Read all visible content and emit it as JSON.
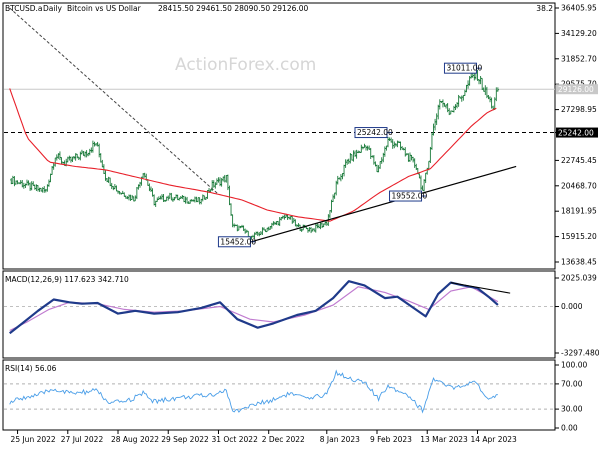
{
  "header": {
    "symbol": "BTCUSD.a",
    "timeframe": "Daily",
    "description": "Bitcoin vs US Dollar",
    "ohlc": "28415.50 29461.50 28090.50 29126.00",
    "corner_value": "38.2"
  },
  "watermark": "ActionForex.com",
  "colors": {
    "price_bars": "#1a7a3a",
    "moving_average": "#e8202a",
    "trendline": "#000000",
    "macd_line": "#1f3a8a",
    "signal_line": "#c07bd0",
    "rsi_line": "#4a9ee8"
  },
  "chart_data": [
    {
      "type": "ohlc",
      "panel": "price",
      "ylim": [
        13638.45,
        36405.95
      ],
      "y_ticks": [
        "36405.95",
        "34129.20",
        "31852.70",
        "29575.70",
        "27298.95",
        "25242.00",
        "22745.45",
        "20468.70",
        "18191.95",
        "15915.20",
        "13638.45"
      ],
      "current_price": "29126.00",
      "x_ticks": [
        "25 Jun 2022",
        "27 Jul 2022",
        "28 Aug 2022",
        "29 Sep 2022",
        "31 Oct 2022",
        "2 Dec 2022",
        "8 Jan 2023",
        "9 Feb 2023",
        "13 Mar 2023",
        "14 Apr 2023"
      ],
      "close_path": [
        {
          "date": "2022-06-21",
          "close": 21000
        },
        {
          "date": "2022-06-27",
          "close": 20700
        },
        {
          "date": "2022-07-05",
          "close": 20300
        },
        {
          "date": "2022-07-13",
          "close": 20000
        },
        {
          "date": "2022-07-19",
          "close": 23200
        },
        {
          "date": "2022-07-25",
          "close": 22500
        },
        {
          "date": "2022-08-01",
          "close": 23000
        },
        {
          "date": "2022-08-08",
          "close": 23500
        },
        {
          "date": "2022-08-14",
          "close": 24300
        },
        {
          "date": "2022-08-20",
          "close": 21300
        },
        {
          "date": "2022-08-28",
          "close": 20000
        },
        {
          "date": "2022-09-07",
          "close": 19300
        },
        {
          "date": "2022-09-13",
          "close": 21800
        },
        {
          "date": "2022-09-20",
          "close": 19000
        },
        {
          "date": "2022-09-29",
          "close": 19500
        },
        {
          "date": "2022-10-10",
          "close": 19200
        },
        {
          "date": "2022-10-20",
          "close": 19100
        },
        {
          "date": "2022-10-27",
          "close": 20500
        },
        {
          "date": "2022-11-05",
          "close": 21200
        },
        {
          "date": "2022-11-09",
          "close": 16800
        },
        {
          "date": "2022-11-15",
          "close": 16600
        },
        {
          "date": "2022-11-21",
          "close": 15800
        },
        {
          "date": "2022-11-28",
          "close": 16400
        },
        {
          "date": "2022-12-05",
          "close": 17000
        },
        {
          "date": "2022-12-14",
          "close": 17800
        },
        {
          "date": "2022-12-20",
          "close": 16800
        },
        {
          "date": "2022-12-30",
          "close": 16550
        },
        {
          "date": "2023-01-08",
          "close": 17200
        },
        {
          "date": "2023-01-14",
          "close": 20500
        },
        {
          "date": "2023-01-21",
          "close": 22700
        },
        {
          "date": "2023-01-29",
          "close": 23600
        },
        {
          "date": "2023-02-02",
          "close": 24200
        },
        {
          "date": "2023-02-09",
          "close": 21800
        },
        {
          "date": "2023-02-16",
          "close": 24500
        },
        {
          "date": "2023-02-22",
          "close": 24200
        },
        {
          "date": "2023-02-28",
          "close": 23200
        },
        {
          "date": "2023-03-06",
          "close": 22200
        },
        {
          "date": "2023-03-10",
          "close": 20000
        },
        {
          "date": "2023-03-13",
          "close": 22000
        },
        {
          "date": "2023-03-16",
          "close": 25000
        },
        {
          "date": "2023-03-21",
          "close": 28200
        },
        {
          "date": "2023-03-27",
          "close": 27100
        },
        {
          "date": "2023-04-03",
          "close": 28300
        },
        {
          "date": "2023-04-11",
          "close": 30300
        },
        {
          "date": "2023-04-14",
          "close": 30400
        },
        {
          "date": "2023-04-19",
          "close": 28800
        },
        {
          "date": "2023-04-24",
          "close": 27500
        },
        {
          "date": "2023-04-27",
          "close": 29126
        }
      ],
      "moving_average": [
        {
          "date": "2022-06-20",
          "value": 29200
        },
        {
          "date": "2022-07-01",
          "value": 24800
        },
        {
          "date": "2022-07-15",
          "value": 22600
        },
        {
          "date": "2022-08-01",
          "value": 22200
        },
        {
          "date": "2022-08-20",
          "value": 21900
        },
        {
          "date": "2022-09-10",
          "value": 21200
        },
        {
          "date": "2022-10-01",
          "value": 20500
        },
        {
          "date": "2022-10-25",
          "value": 19900
        },
        {
          "date": "2022-11-15",
          "value": 19200
        },
        {
          "date": "2022-12-01",
          "value": 18300
        },
        {
          "date": "2022-12-20",
          "value": 17700
        },
        {
          "date": "2023-01-10",
          "value": 17300
        },
        {
          "date": "2023-01-25",
          "value": 18200
        },
        {
          "date": "2023-02-10",
          "value": 19800
        },
        {
          "date": "2023-03-01",
          "value": 21300
        },
        {
          "date": "2023-03-15",
          "value": 22000
        },
        {
          "date": "2023-03-28",
          "value": 23900
        },
        {
          "date": "2023-04-10",
          "value": 25800
        },
        {
          "date": "2023-04-20",
          "value": 27000
        },
        {
          "date": "2023-04-27",
          "value": 27500
        }
      ],
      "support_trendline": [
        {
          "date": "2022-11-21",
          "value": 15452
        },
        {
          "date": "2023-05-01",
          "value": 22200
        }
      ],
      "resistance_trendline": [
        {
          "date": "2022-06-20",
          "value": 36400
        },
        {
          "date": "2022-10-31",
          "value": 19700
        }
      ],
      "horizontal_levels": [
        {
          "value": 25242.0,
          "label": "25242.00"
        }
      ],
      "annotations": [
        {
          "label": "31011.00",
          "date": "2023-04-14",
          "value": 31011
        },
        {
          "label": "25242.00",
          "date": "2023-02-16",
          "value": 25242
        },
        {
          "label": "19552.00",
          "date": "2023-03-10",
          "value": 19552
        },
        {
          "label": "15452.00",
          "date": "2022-11-21",
          "value": 15452
        }
      ]
    },
    {
      "type": "line",
      "panel": "macd",
      "title": "MACD(12,26,9) 117.623 342.710",
      "ylim": [
        -3297.48,
        2025.039
      ],
      "y_ticks": [
        "2025.039",
        "0.000",
        "-3297.480"
      ],
      "series": [
        {
          "name": "MACD",
          "points": [
            {
              "date": "2022-06-20",
              "value": -1900
            },
            {
              "date": "2022-06-28",
              "value": -1200
            },
            {
              "date": "2022-07-08",
              "value": -300
            },
            {
              "date": "2022-07-18",
              "value": 500
            },
            {
              "date": "2022-07-28",
              "value": 300
            },
            {
              "date": "2022-08-05",
              "value": 200
            },
            {
              "date": "2022-08-15",
              "value": 250
            },
            {
              "date": "2022-08-28",
              "value": -500
            },
            {
              "date": "2022-09-08",
              "value": -300
            },
            {
              "date": "2022-09-20",
              "value": -500
            },
            {
              "date": "2022-10-05",
              "value": -400
            },
            {
              "date": "2022-10-20",
              "value": -100
            },
            {
              "date": "2022-11-01",
              "value": 300
            },
            {
              "date": "2022-11-12",
              "value": -900
            },
            {
              "date": "2022-11-25",
              "value": -1500
            },
            {
              "date": "2022-12-05",
              "value": -1200
            },
            {
              "date": "2022-12-20",
              "value": -600
            },
            {
              "date": "2023-01-01",
              "value": -300
            },
            {
              "date": "2023-01-12",
              "value": 600
            },
            {
              "date": "2023-01-22",
              "value": 1800
            },
            {
              "date": "2023-02-01",
              "value": 1500
            },
            {
              "date": "2023-02-14",
              "value": 600
            },
            {
              "date": "2023-02-22",
              "value": 700
            },
            {
              "date": "2023-03-03",
              "value": 0
            },
            {
              "date": "2023-03-12",
              "value": -700
            },
            {
              "date": "2023-03-20",
              "value": 900
            },
            {
              "date": "2023-03-28",
              "value": 1700
            },
            {
              "date": "2023-04-05",
              "value": 1500
            },
            {
              "date": "2023-04-14",
              "value": 1300
            },
            {
              "date": "2023-04-21",
              "value": 700
            },
            {
              "date": "2023-04-27",
              "value": 118
            }
          ]
        },
        {
          "name": "Signal",
          "points": [
            {
              "date": "2022-06-20",
              "value": -1700
            },
            {
              "date": "2022-07-01",
              "value": -1100
            },
            {
              "date": "2022-07-15",
              "value": -200
            },
            {
              "date": "2022-07-28",
              "value": 300
            },
            {
              "date": "2022-08-15",
              "value": 200
            },
            {
              "date": "2022-09-01",
              "value": -200
            },
            {
              "date": "2022-09-20",
              "value": -400
            },
            {
              "date": "2022-10-10",
              "value": -300
            },
            {
              "date": "2022-11-01",
              "value": 0
            },
            {
              "date": "2022-11-20",
              "value": -900
            },
            {
              "date": "2022-12-05",
              "value": -1100
            },
            {
              "date": "2022-12-25",
              "value": -600
            },
            {
              "date": "2023-01-12",
              "value": 100
            },
            {
              "date": "2023-01-28",
              "value": 1400
            },
            {
              "date": "2023-02-14",
              "value": 1000
            },
            {
              "date": "2023-03-01",
              "value": 400
            },
            {
              "date": "2023-03-14",
              "value": -200
            },
            {
              "date": "2023-03-28",
              "value": 1100
            },
            {
              "date": "2023-04-10",
              "value": 1400
            },
            {
              "date": "2023-04-27",
              "value": 343
            }
          ]
        }
      ],
      "bearish_divergence_line": [
        {
          "date": "2023-03-28",
          "value": 1700
        },
        {
          "date": "2023-05-01",
          "value": 950
        }
      ]
    },
    {
      "type": "line",
      "panel": "rsi",
      "title": "RSI(14) 56.06",
      "ylim": [
        0,
        100
      ],
      "y_ticks": [
        "100.00",
        "70.00",
        "30.00",
        "0.00"
      ],
      "levels": [
        70,
        30
      ],
      "series": [
        {
          "name": "RSI",
          "points": [
            {
              "date": "2022-06-20",
              "value": 40
            },
            {
              "date": "2022-06-28",
              "value": 48
            },
            {
              "date": "2022-07-08",
              "value": 52
            },
            {
              "date": "2022-07-18",
              "value": 62
            },
            {
              "date": "2022-07-28",
              "value": 55
            },
            {
              "date": "2022-08-08",
              "value": 57
            },
            {
              "date": "2022-08-15",
              "value": 60
            },
            {
              "date": "2022-08-22",
              "value": 38
            },
            {
              "date": "2022-09-05",
              "value": 45
            },
            {
              "date": "2022-09-13",
              "value": 55
            },
            {
              "date": "2022-09-20",
              "value": 42
            },
            {
              "date": "2022-10-05",
              "value": 48
            },
            {
              "date": "2022-10-25",
              "value": 52
            },
            {
              "date": "2022-11-05",
              "value": 60
            },
            {
              "date": "2022-11-09",
              "value": 25
            },
            {
              "date": "2022-11-20",
              "value": 35
            },
            {
              "date": "2022-12-05",
              "value": 45
            },
            {
              "date": "2022-12-15",
              "value": 55
            },
            {
              "date": "2022-12-28",
              "value": 45
            },
            {
              "date": "2023-01-08",
              "value": 55
            },
            {
              "date": "2023-01-14",
              "value": 88
            },
            {
              "date": "2023-01-22",
              "value": 80
            },
            {
              "date": "2023-02-02",
              "value": 70
            },
            {
              "date": "2023-02-10",
              "value": 45
            },
            {
              "date": "2023-02-16",
              "value": 68
            },
            {
              "date": "2023-03-01",
              "value": 52
            },
            {
              "date": "2023-03-10",
              "value": 28
            },
            {
              "date": "2023-03-17",
              "value": 78
            },
            {
              "date": "2023-03-25",
              "value": 66
            },
            {
              "date": "2023-04-03",
              "value": 64
            },
            {
              "date": "2023-04-12",
              "value": 72
            },
            {
              "date": "2023-04-18",
              "value": 56
            },
            {
              "date": "2023-04-22",
              "value": 45
            },
            {
              "date": "2023-04-27",
              "value": 56
            }
          ]
        }
      ]
    }
  ]
}
